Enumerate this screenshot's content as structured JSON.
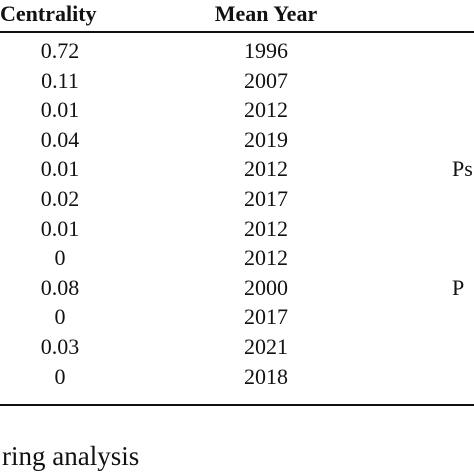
{
  "table": {
    "header": [
      "Centrality",
      "Mean Year"
    ],
    "rows": [
      [
        "0.72",
        "1996"
      ],
      [
        "0.11",
        "2007"
      ],
      [
        "0.01",
        "2012"
      ],
      [
        "0.04",
        "2019"
      ],
      [
        "0.01",
        "2012",
        "Ps"
      ],
      [
        "0.02",
        "2017"
      ],
      [
        "0.01",
        "2012"
      ],
      [
        "0",
        "2012"
      ],
      [
        "0.08",
        "2000",
        "P"
      ],
      [
        "0",
        "2017"
      ],
      [
        "0.03",
        "2021"
      ],
      [
        "0",
        "2018"
      ]
    ]
  },
  "caption": "ring analysis"
}
